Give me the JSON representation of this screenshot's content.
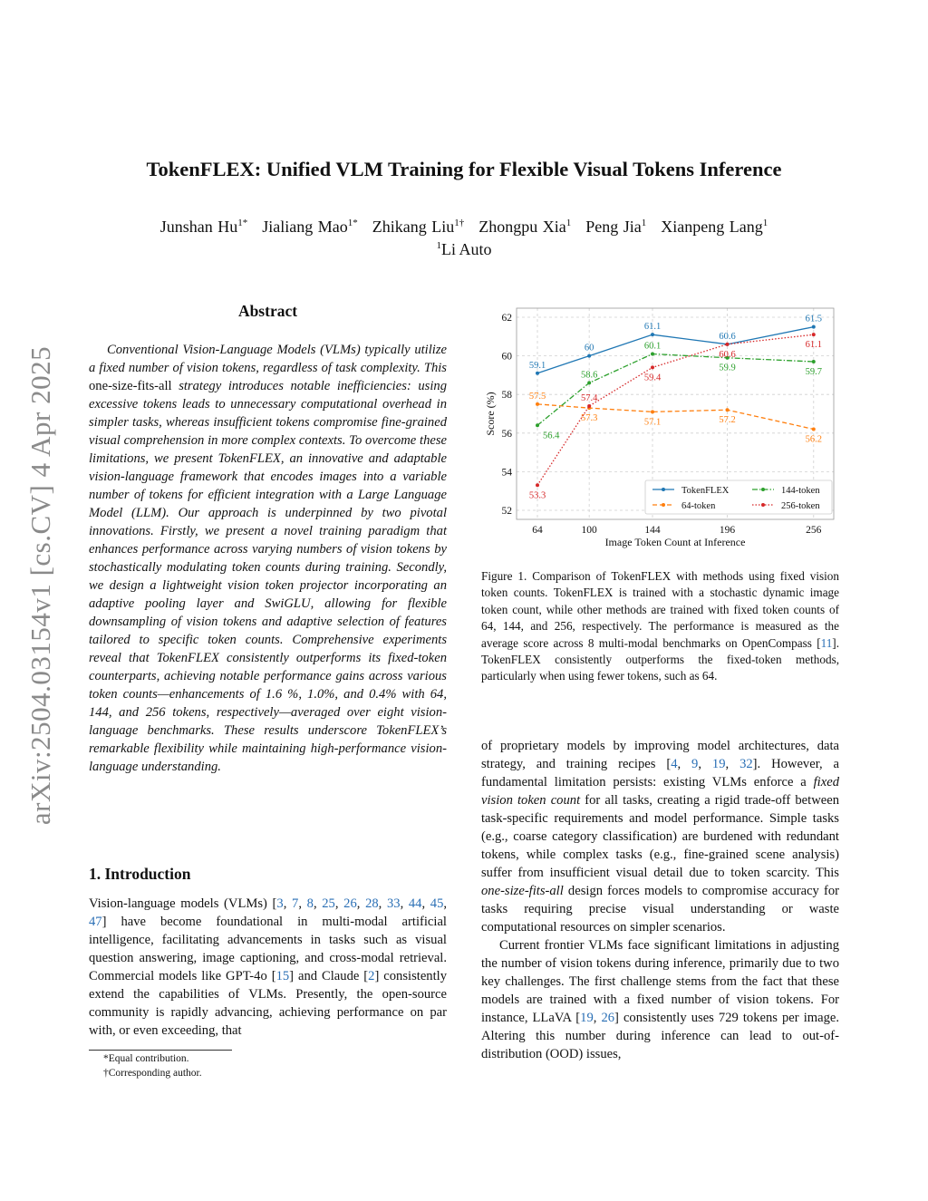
{
  "sidebar_stamp": "arXiv:2504.03154v1  [cs.CV]  4 Apr 2025",
  "title": "TokenFLEX: Unified VLM Training for Flexible Visual Tokens Inference",
  "authors": [
    {
      "name": "Junshan Hu",
      "mark": "1*"
    },
    {
      "name": "Jialiang Mao",
      "mark": "1*"
    },
    {
      "name": "Zhikang Liu",
      "mark": "1†"
    },
    {
      "name": "Zhongpu Xia",
      "mark": "1"
    },
    {
      "name": "Peng Jia",
      "mark": "1"
    },
    {
      "name": "Xianpeng Lang",
      "mark": "1"
    }
  ],
  "affiliation": {
    "mark": "1",
    "name": "Li Auto"
  },
  "abstract": {
    "heading": "Abstract",
    "paragraphs": [
      [
        [
          "Conventional Vision-Language Models (VLMs) typically utilize a fixed number of vision tokens, regardless of task complexity. This ",
          ""
        ],
        [
          "one-size-fits-all",
          "n"
        ],
        [
          " strategy introduces notable inefficiencies: using excessive tokens leads to unnecessary computational overhead in simpler tasks, whereas insufficient tokens compromise fine-grained visual comprehension in more complex contexts. To overcome these limitations, we present TokenFLEX, an innovative and adaptable vision-language framework that encodes images into a variable number of tokens for efficient integration with a Large Language Model (LLM). Our approach is underpinned by two pivotal innovations. Firstly, we present a novel training paradigm that enhances performance across varying numbers of vision tokens by stochastically modulating token counts during training. Secondly, we design a lightweight vision token projector incorporating an adaptive pooling layer and SwiGLU, allowing for flexible downsampling of vision tokens and adaptive selection of features tailored to specific token counts. Comprehensive experiments reveal that TokenFLEX consistently outperforms its fixed-token counterparts, achieving notable performance gains across various token counts—enhancements of 1.6 %, 1.0%, and 0.4% with 64, 144, and 256 tokens, respectively—averaged over eight vision-language benchmarks. These results underscore TokenFLEX’s remarkable flexibility while maintaining high-performance vision-language understanding.",
          ""
        ]
      ]
    ]
  },
  "introduction": {
    "heading": "1. Introduction",
    "paragraphs": [
      [
        [
          "Vision-language models (VLMs) [",
          ""
        ],
        [
          "3",
          "c"
        ],
        [
          ", ",
          ""
        ],
        [
          "7",
          "c"
        ],
        [
          ", ",
          ""
        ],
        [
          "8",
          "c"
        ],
        [
          ", ",
          ""
        ],
        [
          "25",
          "c"
        ],
        [
          ", ",
          ""
        ],
        [
          "26",
          "c"
        ],
        [
          ", ",
          ""
        ],
        [
          "28",
          "c"
        ],
        [
          ", ",
          ""
        ],
        [
          "33",
          "c"
        ],
        [
          ", ",
          ""
        ],
        [
          "44",
          "c"
        ],
        [
          ", ",
          ""
        ],
        [
          "45",
          "c"
        ],
        [
          ", ",
          ""
        ],
        [
          "47",
          "c"
        ],
        [
          "] have become foundational in multi-modal artificial intelligence, facilitating advancements in tasks such as visual question answering, image captioning, and cross-modal retrieval. Commercial models like GPT-4o [",
          ""
        ],
        [
          "15",
          "c"
        ],
        [
          "] and Claude [",
          ""
        ],
        [
          "2",
          "c"
        ],
        [
          "] consistently extend the capabilities of VLMs. Presently, the open-source community is rapidly advancing, achieving performance on par with, or even exceeding, that",
          ""
        ]
      ]
    ]
  },
  "right_column": {
    "paragraphs": [
      [
        [
          "of proprietary models by improving model architectures, data strategy, and training recipes [",
          ""
        ],
        [
          "4",
          "c"
        ],
        [
          ", ",
          ""
        ],
        [
          "9",
          "c"
        ],
        [
          ", ",
          ""
        ],
        [
          "19",
          "c"
        ],
        [
          ", ",
          ""
        ],
        [
          "32",
          "c"
        ],
        [
          "]. However, a fundamental limitation persists: existing VLMs enforce a ",
          ""
        ],
        [
          "fixed vision token count",
          "i"
        ],
        [
          " for all tasks, creating a rigid trade-off between task-specific requirements and model performance. Simple tasks (e.g., coarse category classification) are burdened with redundant tokens, while complex tasks (e.g., fine-grained scene analysis) suffer from insufficient visual detail due to token scarcity. This ",
          ""
        ],
        [
          "one-size-fits-all",
          "i"
        ],
        [
          " design forces models to compromise accuracy for tasks requiring precise visual understanding or waste computational resources on simpler scenarios.",
          ""
        ]
      ],
      [
        [
          "Current frontier VLMs face significant limitations in adjusting the number of vision tokens during inference, primarily due to two key challenges. The first challenge stems from the fact that these models are trained with a fixed number of vision tokens. For instance, LLaVA [",
          ""
        ],
        [
          "19",
          "c"
        ],
        [
          ", ",
          ""
        ],
        [
          "26",
          "c"
        ],
        [
          "] consistently uses 729 tokens per image. Altering this number during inference can lead to out-of-distribution (OOD) issues,",
          ""
        ]
      ]
    ]
  },
  "footnotes": [
    "*Equal contribution.",
    "†Corresponding author."
  ],
  "figure_caption": [
    [
      "Figure 1.  Comparison of TokenFLEX with methods using fixed vision token counts. TokenFLEX is trained with a stochastic dynamic image token count, while other methods are trained with fixed token counts of 64, 144, and 256, respectively. The performance is measured as the average score across 8 multi-modal benchmarks on OpenCompass [",
      ""
    ],
    [
      "11",
      "c"
    ],
    [
      "]. TokenFLEX consistently outperforms the fixed-token methods, particularly when using fewer tokens, such as 64.",
      ""
    ]
  ],
  "chart_data": {
    "type": "line",
    "xlabel": "Image Token Count at Inference",
    "ylabel": "Score (%)",
    "x": [
      64,
      100,
      144,
      196,
      256
    ],
    "xticks": [
      "64",
      "100",
      "144",
      "196",
      "256"
    ],
    "yticks": [
      "52",
      "54",
      "56",
      "58",
      "60",
      "62"
    ],
    "xlim": [
      49.5,
      270
    ],
    "ylim": [
      51.53,
      62.47
    ],
    "grid": true,
    "legend_position": "bottom-right",
    "series": [
      {
        "name": "TokenFLEX",
        "values": [
          59.1,
          60.0,
          61.1,
          60.6,
          61.5
        ],
        "color": "#1f77b4",
        "style": "solid"
      },
      {
        "name": "64-token",
        "values": [
          57.5,
          57.3,
          57.1,
          57.2,
          56.2
        ],
        "color": "#ff7f0e",
        "style": "dashed"
      },
      {
        "name": "144-token",
        "values": [
          56.4,
          58.6,
          60.1,
          59.9,
          59.7
        ],
        "color": "#2ca02c",
        "style": "dashdot"
      },
      {
        "name": "256-token",
        "values": [
          53.3,
          57.4,
          59.4,
          60.6,
          61.1
        ],
        "color": "#d62728",
        "style": "dotted"
      }
    ]
  }
}
